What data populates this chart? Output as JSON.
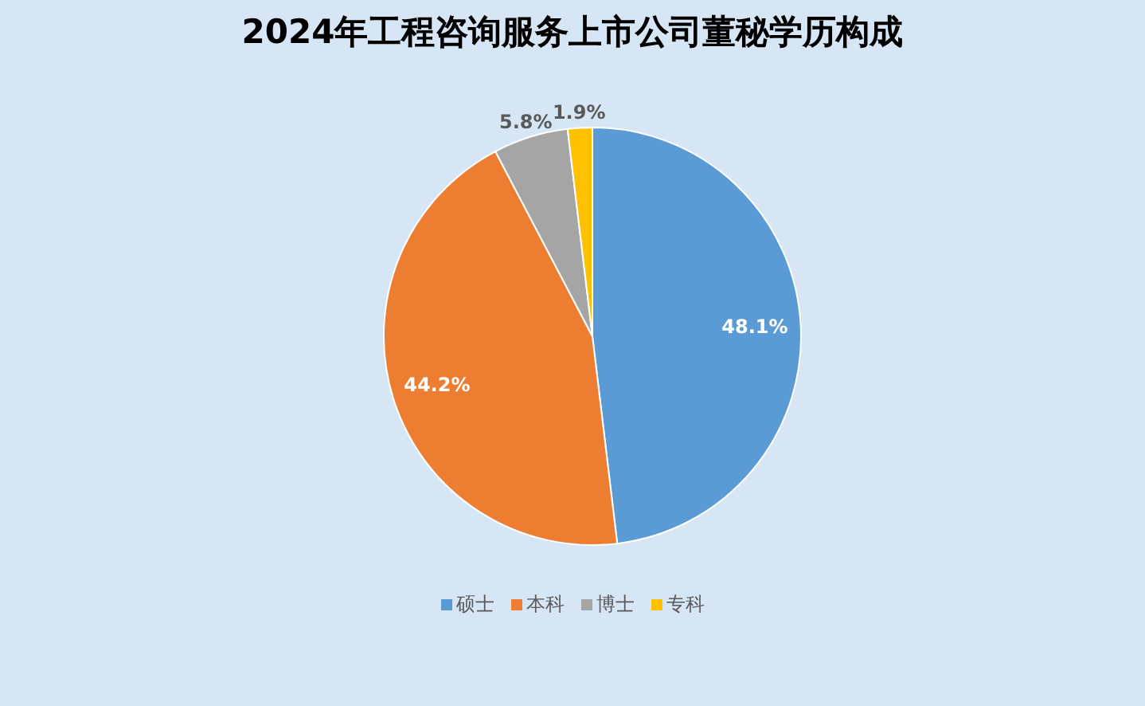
{
  "chart_data": {
    "type": "pie",
    "title": "2024年工程咨询服务上市公司董秘学历构成",
    "categories": [
      "硕士",
      "本科",
      "博士",
      "专科"
    ],
    "values": [
      48.1,
      44.2,
      5.8,
      1.9
    ],
    "colors": [
      "#5b9bd5",
      "#ed7d31",
      "#a5a5a5",
      "#ffc000"
    ],
    "value_labels": [
      "48.1%",
      "44.2%",
      "5.8%",
      "1.9%"
    ],
    "legend": "bottom"
  }
}
